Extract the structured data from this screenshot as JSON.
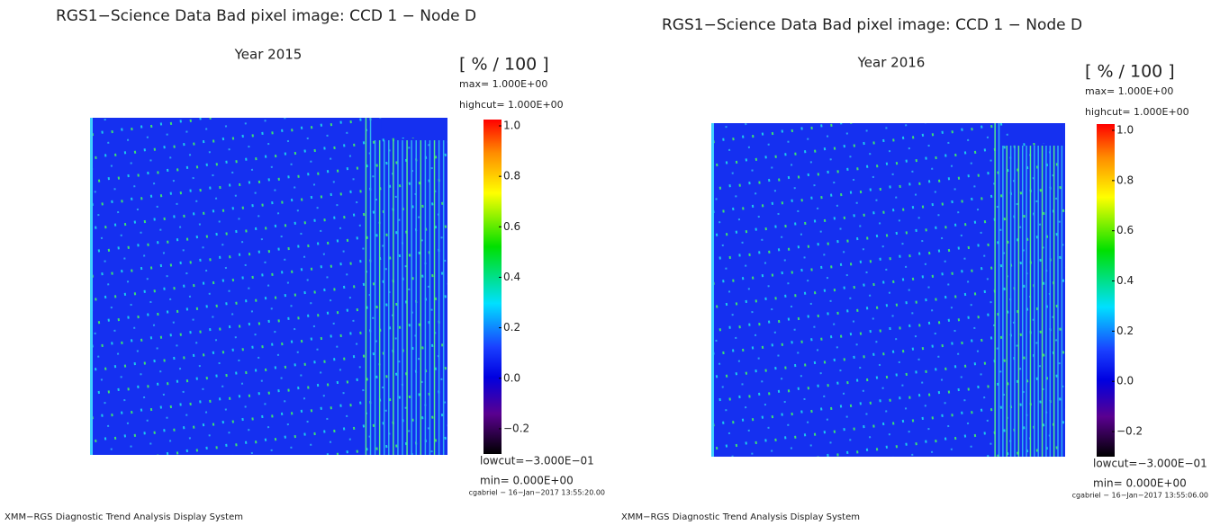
{
  "panels": [
    {
      "title": "RGS1−Science Data Bad pixel image: CCD 1 − Node D",
      "subtitle": "Year 2015",
      "units": "[ % / 100 ]",
      "max": "max= 1.000E+00",
      "highcut": "highcut= 1.000E+00",
      "lowcut": "lowcut=−3.000E−01",
      "min": "min= 0.000E+00",
      "stamp": "cgabriel − 16−Jan−2017 13:55:20.00",
      "footer": "XMM−RGS Diagnostic Trend Analysis Display System",
      "colorbar": {
        "range": [
          -0.3,
          1.0
        ],
        "ticks": [
          {
            "value": 1,
            "label": "1.0"
          },
          0.8,
          0.6,
          0.4,
          0.2,
          {
            "value": 0,
            "label": "0.0"
          },
          {
            "value": -0.2,
            "label": "−0.2"
          }
        ]
      }
    },
    {
      "title": "RGS1−Science Data Bad pixel image: CCD 1 − Node D",
      "subtitle": "Year 2016",
      "units": "[ % / 100 ]",
      "max": "max= 1.000E+00",
      "highcut": "highcut= 1.000E+00",
      "lowcut": "lowcut=−3.000E−01",
      "min": "min= 0.000E+00",
      "stamp": "cgabriel − 16−Jan−2017 13:55:06.00",
      "footer": "XMM−RGS Diagnostic Trend Analysis Display System",
      "colorbar": {
        "range": [
          -0.3,
          1.0
        ],
        "ticks": [
          {
            "value": 1,
            "label": "1.0"
          },
          0.8,
          0.6,
          0.4,
          0.2,
          {
            "value": 0,
            "label": "0.0"
          },
          {
            "value": -0.2,
            "label": "−0.2"
          }
        ]
      }
    }
  ]
}
